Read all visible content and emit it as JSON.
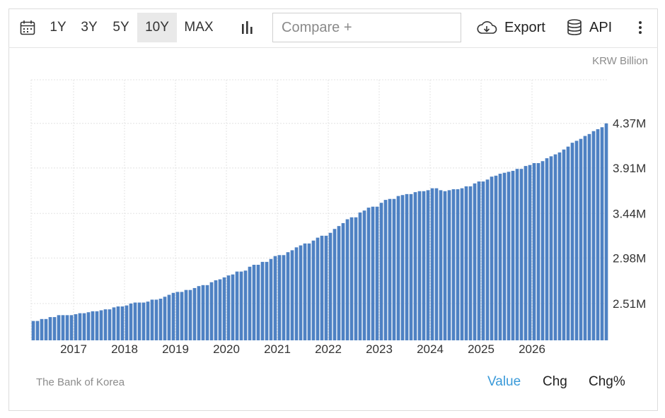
{
  "toolbar": {
    "ranges": [
      "1Y",
      "3Y",
      "5Y",
      "10Y",
      "MAX"
    ],
    "active_range": "10Y",
    "compare_placeholder": "Compare +",
    "export_label": "Export",
    "api_label": "API"
  },
  "unit_label": "KRW Billion",
  "source_label": "The Bank of Korea",
  "modes": {
    "value": "Value",
    "change": "Chg",
    "change_pct": "Chg%",
    "active": "Value"
  },
  "colors": {
    "bar": "#4e81c3",
    "active_mode": "#3a9ad9",
    "active_range_bg": "#e9e9e9"
  },
  "chart_data": {
    "type": "bar",
    "x_start": "2016-03",
    "x_frequency": "monthly",
    "xtick_labels": [
      "2017",
      "2018",
      "2019",
      "2020",
      "2021",
      "2022",
      "2023",
      "2024",
      "2025",
      "2026"
    ],
    "ytick_labels": [
      "2.51M",
      "2.98M",
      "3.44M",
      "3.91M",
      "4.37M"
    ],
    "ylim": [
      2.13,
      4.82
    ],
    "grid": true,
    "values": [
      2.33,
      2.33,
      2.35,
      2.35,
      2.37,
      2.37,
      2.39,
      2.39,
      2.39,
      2.39,
      2.4,
      2.41,
      2.41,
      2.42,
      2.43,
      2.43,
      2.44,
      2.45,
      2.45,
      2.47,
      2.48,
      2.48,
      2.49,
      2.51,
      2.52,
      2.52,
      2.52,
      2.53,
      2.55,
      2.55,
      2.56,
      2.58,
      2.6,
      2.62,
      2.63,
      2.63,
      2.65,
      2.65,
      2.67,
      2.69,
      2.7,
      2.7,
      2.73,
      2.75,
      2.76,
      2.78,
      2.8,
      2.81,
      2.84,
      2.84,
      2.85,
      2.89,
      2.91,
      2.91,
      2.94,
      2.94,
      2.97,
      3.0,
      3.01,
      3.01,
      3.04,
      3.06,
      3.09,
      3.11,
      3.13,
      3.13,
      3.16,
      3.19,
      3.21,
      3.21,
      3.24,
      3.28,
      3.31,
      3.34,
      3.38,
      3.4,
      3.4,
      3.45,
      3.47,
      3.5,
      3.51,
      3.51,
      3.55,
      3.58,
      3.59,
      3.59,
      3.62,
      3.63,
      3.64,
      3.64,
      3.66,
      3.67,
      3.67,
      3.68,
      3.7,
      3.7,
      3.68,
      3.67,
      3.68,
      3.69,
      3.69,
      3.7,
      3.72,
      3.72,
      3.75,
      3.77,
      3.77,
      3.79,
      3.82,
      3.83,
      3.85,
      3.86,
      3.87,
      3.88,
      3.9,
      3.9,
      3.93,
      3.94,
      3.96,
      3.96,
      3.98,
      4.01,
      4.03,
      4.05,
      4.07,
      4.1,
      4.13,
      4.17,
      4.19,
      4.21,
      4.24,
      4.26,
      4.29,
      4.31,
      4.33,
      4.37
    ]
  }
}
